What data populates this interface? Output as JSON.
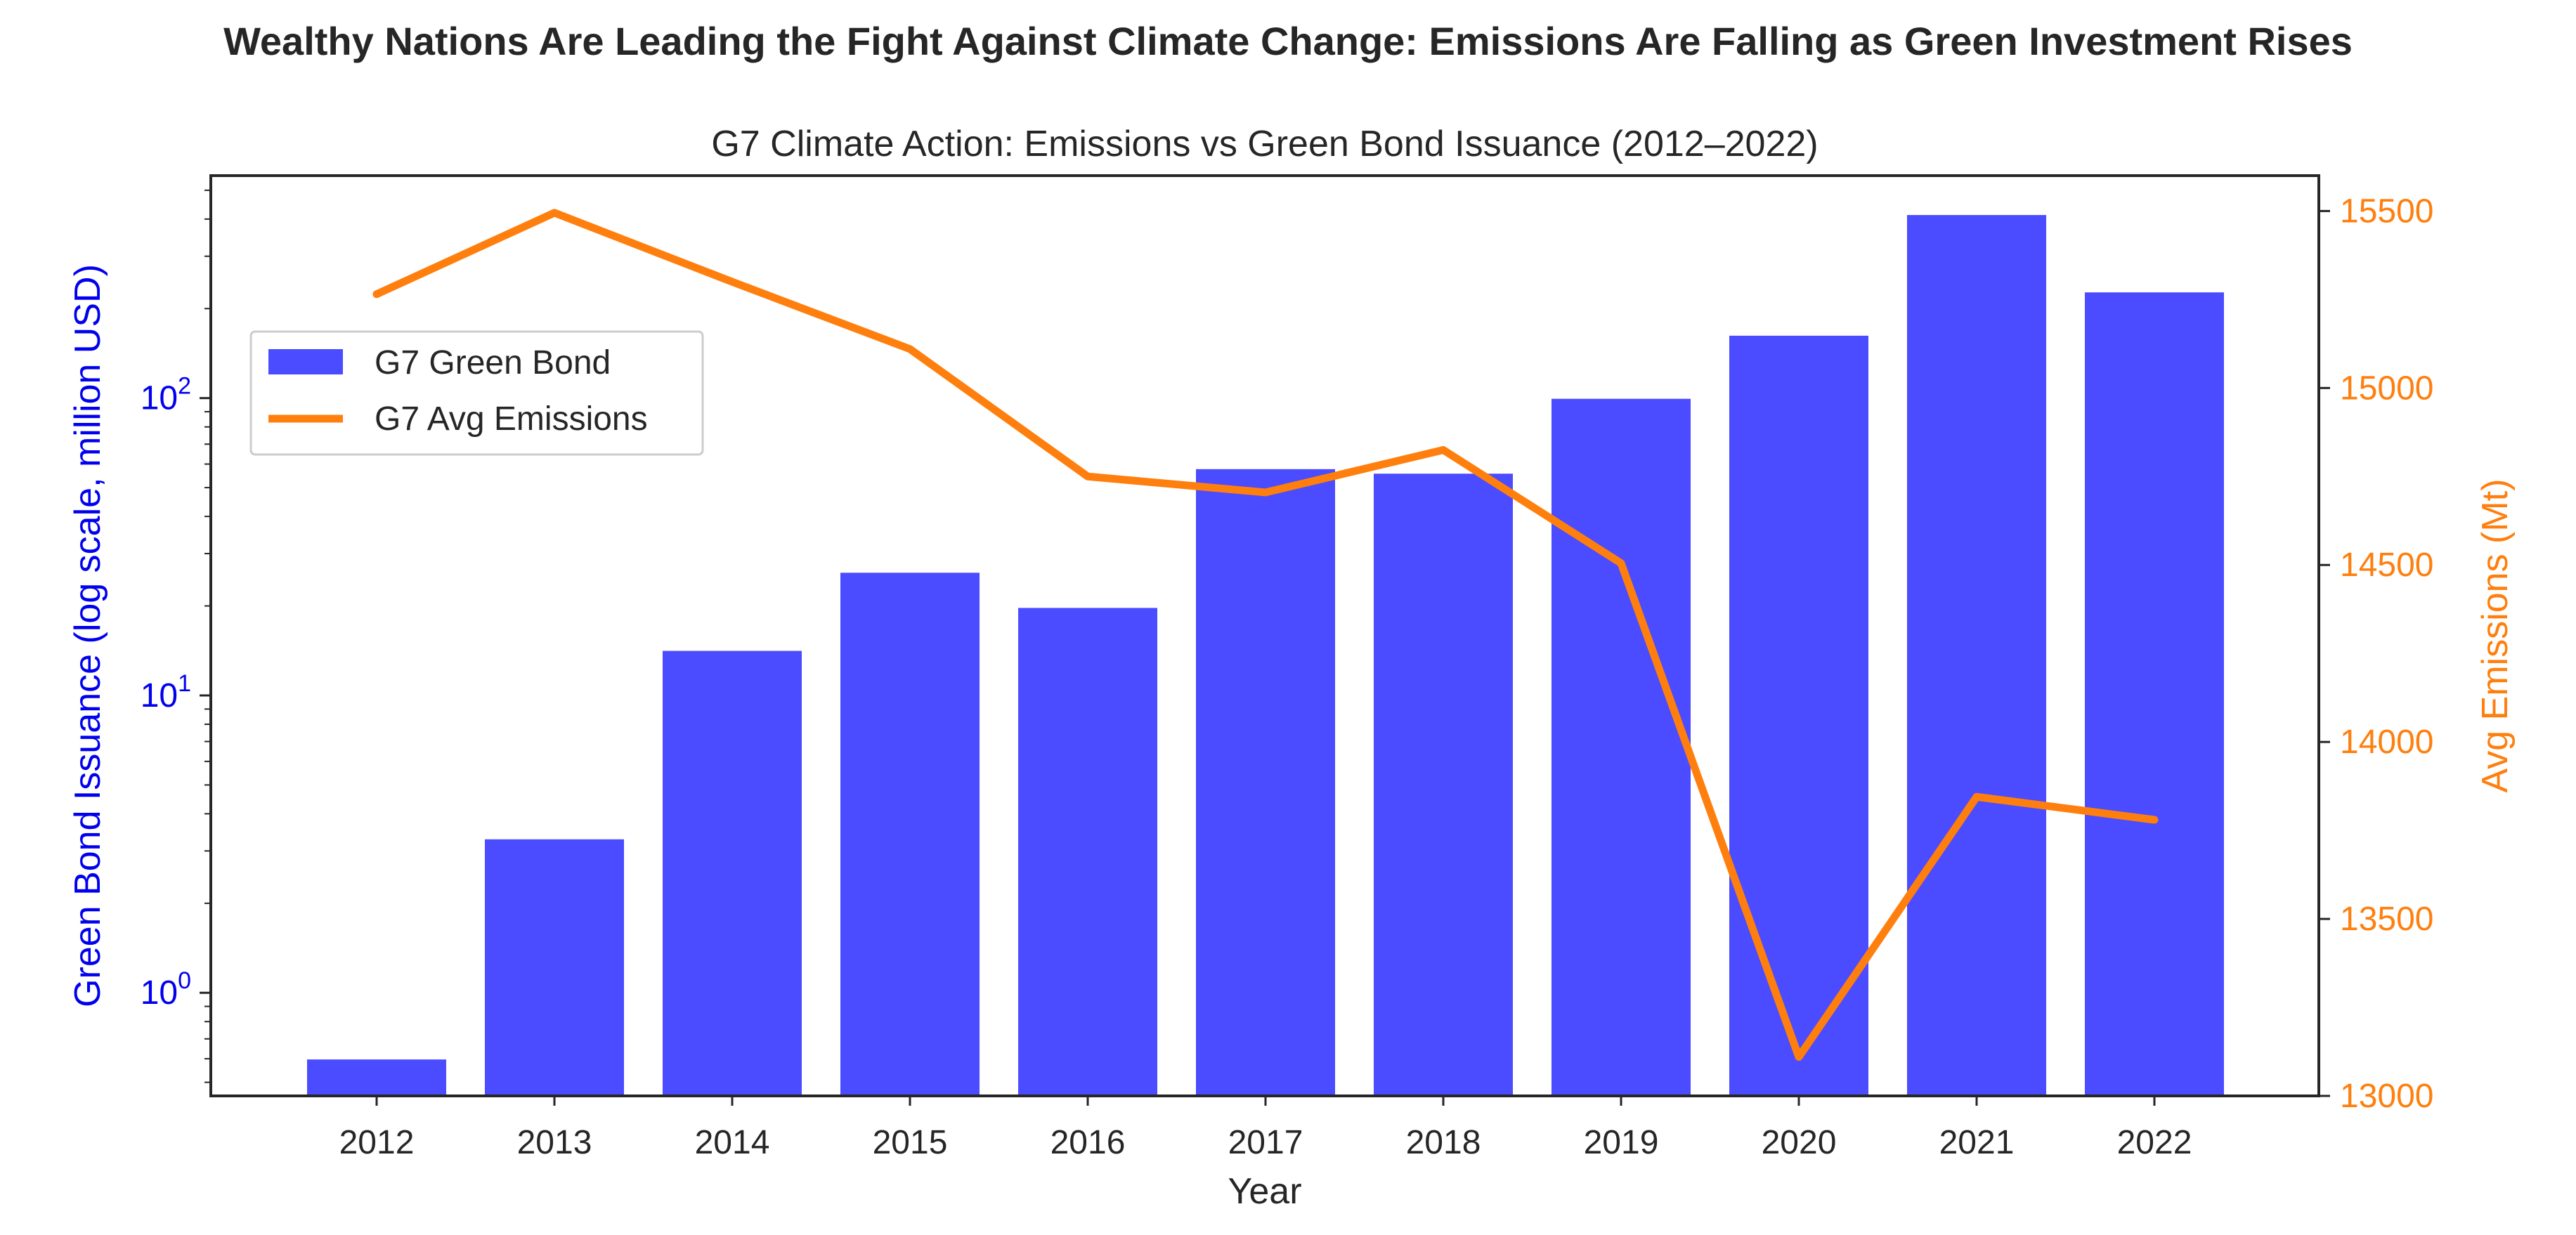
{
  "chart_data": {
    "type": "bar+line",
    "suptitle": "Wealthy Nations Are Leading the Fight Against Climate Change: Emissions Are Falling as Green Investment Rises",
    "title": "G7 Climate Action: Emissions vs Green Bond Issuance (2012–2022)",
    "xlabel": "Year",
    "categories": [
      "2012",
      "2013",
      "2014",
      "2015",
      "2016",
      "2017",
      "2018",
      "2019",
      "2020",
      "2021",
      "2022"
    ],
    "left_axis": {
      "label": "Green Bond Issuance (log scale, million USD)",
      "scale": "log",
      "ylim": [
        0.45,
        560
      ],
      "ticks": [
        {
          "base": "10",
          "exp": "0",
          "value": 1
        },
        {
          "base": "10",
          "exp": "1",
          "value": 10
        },
        {
          "base": "10",
          "exp": "2",
          "value": 100
        }
      ],
      "color": "#0000ee"
    },
    "right_axis": {
      "label": "Avg Emissions (Mt)",
      "scale": "linear",
      "ylim": [
        13000,
        15600
      ],
      "ticks": [
        "13000",
        "13500",
        "14000",
        "14500",
        "15000",
        "15500"
      ],
      "color": "#ff7f0e"
    },
    "series": [
      {
        "name": "G7 Green Bond",
        "type": "bar",
        "axis": "left",
        "color": "#4b4bff",
        "values": [
          0.6,
          3.3,
          14.2,
          26.0,
          19.8,
          58.0,
          56.0,
          100.0,
          163.0,
          415.0,
          228.0
        ]
      },
      {
        "name": "G7 Avg Emissions",
        "type": "line",
        "axis": "right",
        "color": "#ff7f0e",
        "values": [
          15265,
          15495,
          15300,
          15110,
          14750,
          14705,
          14825,
          14505,
          13110,
          13845,
          13780
        ]
      }
    ],
    "legend_position": "upper-left",
    "grid": false
  }
}
